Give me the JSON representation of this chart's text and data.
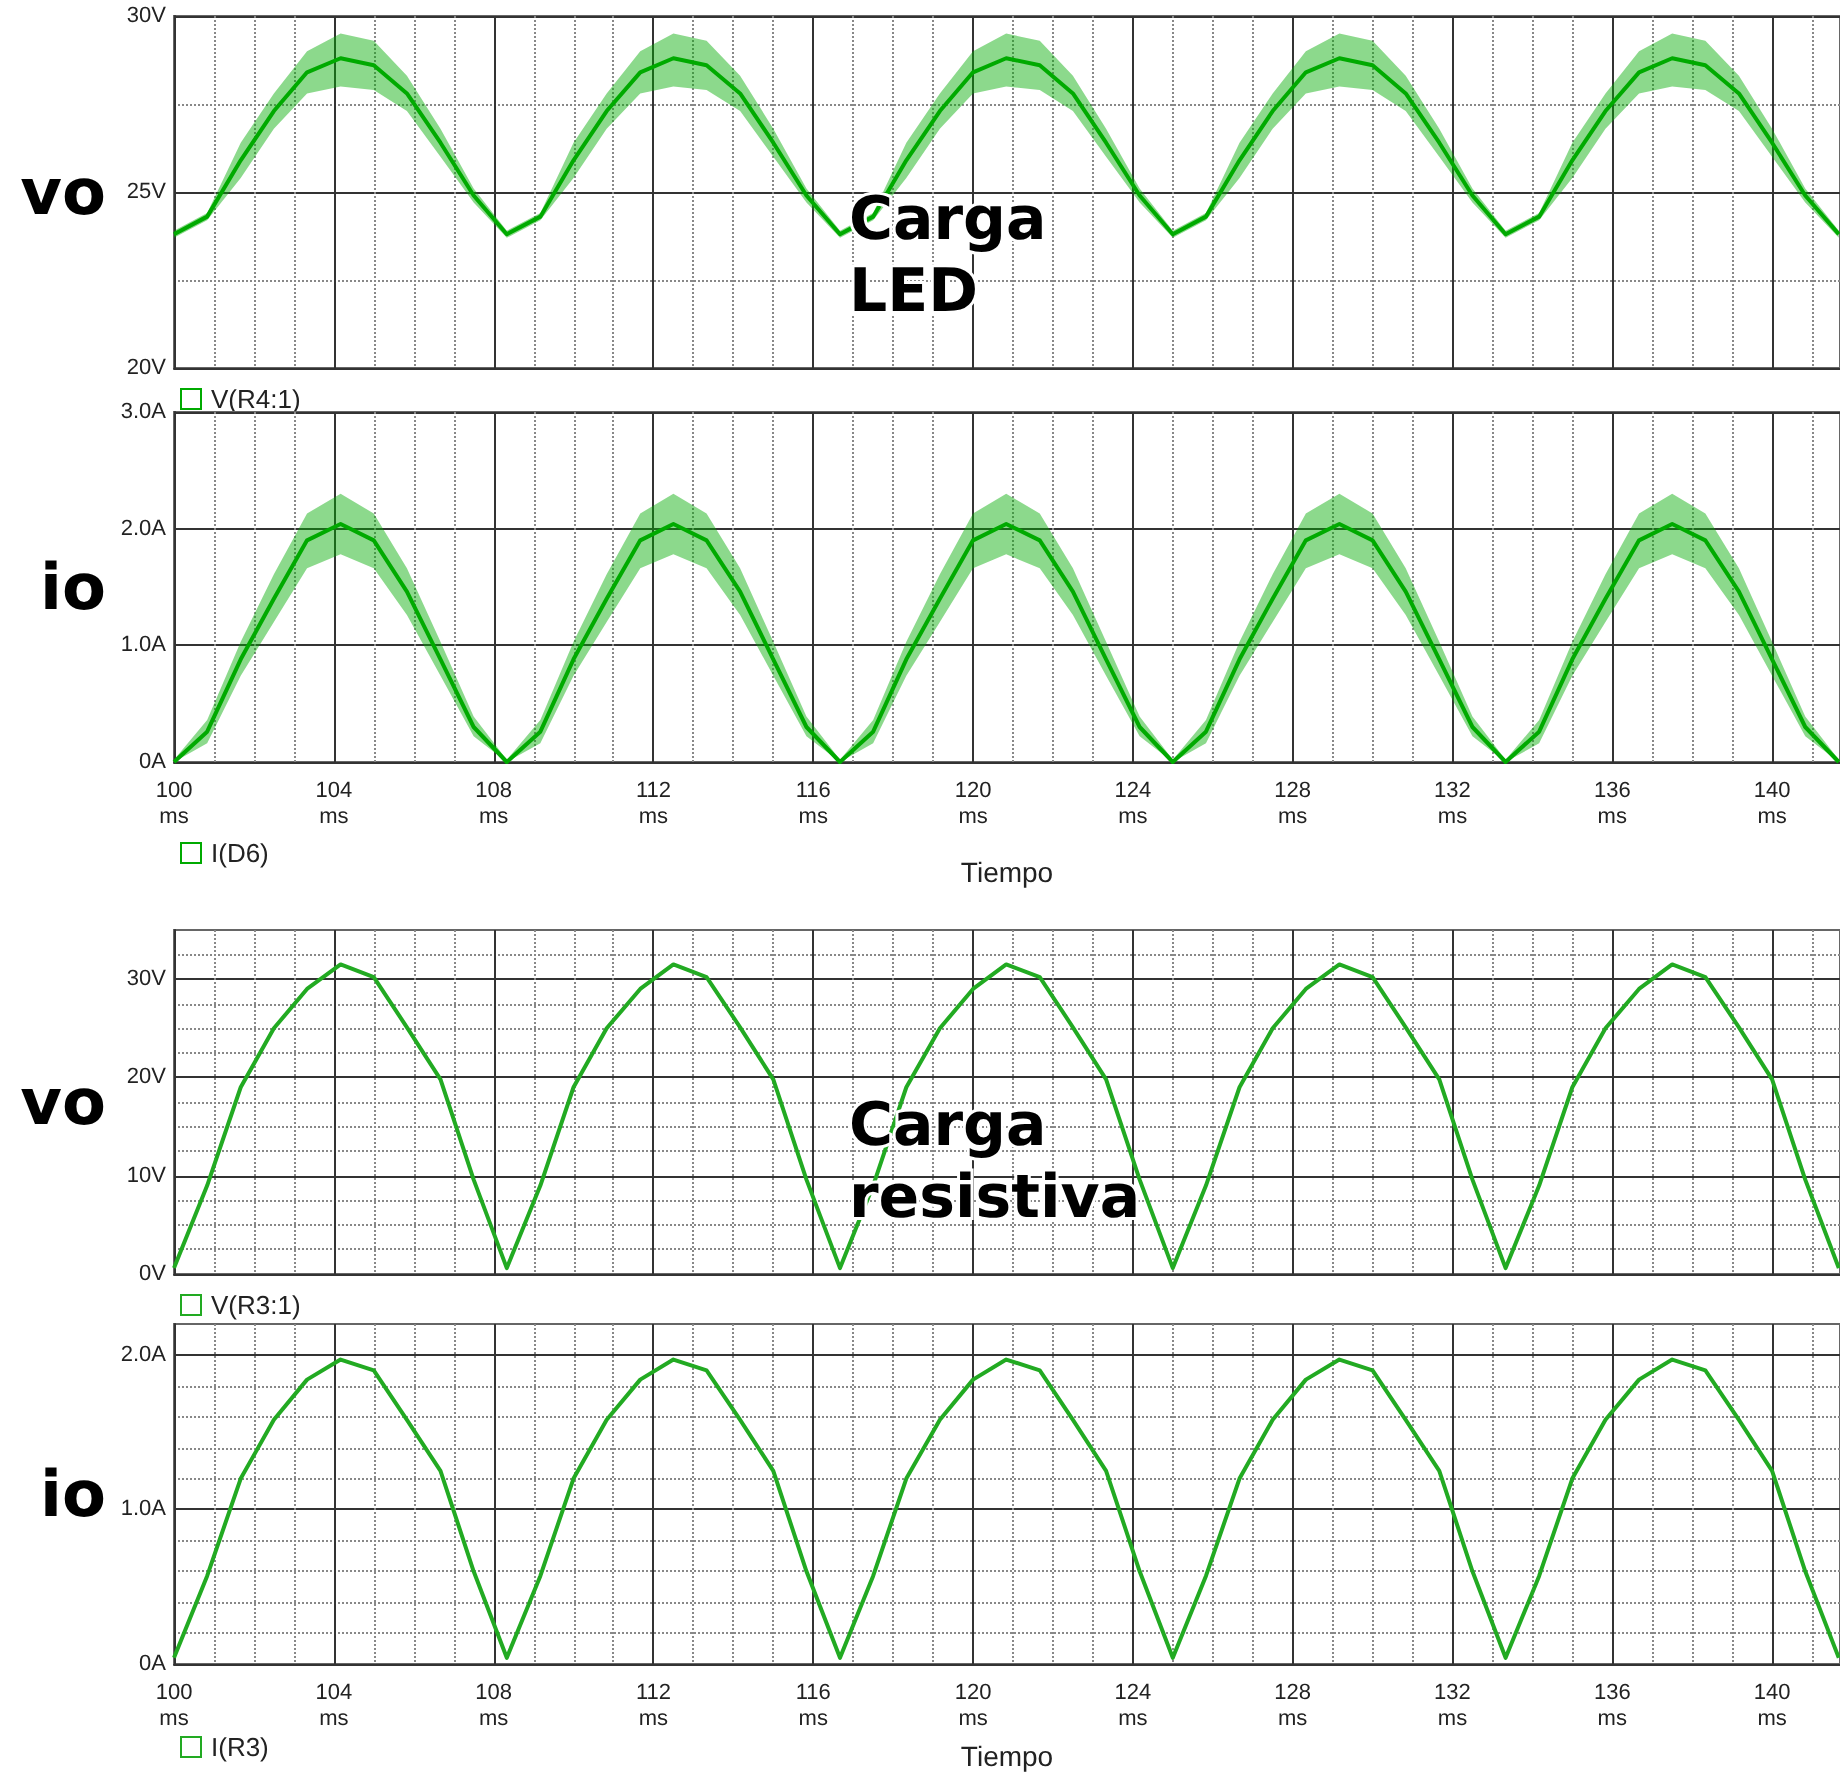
{
  "chart_data": [
    {
      "type": "line",
      "x": [
        100,
        100.83,
        101.67,
        102.5,
        103.33,
        104.17,
        105,
        105.83,
        106.67,
        107.5,
        108.33,
        109.17,
        110,
        110.83,
        111.67,
        112.5,
        113.33,
        114.17,
        115,
        115.83,
        116.67,
        117.5,
        118.33,
        119.17,
        120,
        120.83,
        121.67,
        122.5,
        123.33,
        124.17,
        125,
        125.83,
        126.67,
        127.5,
        128.33,
        129.17,
        130,
        130.83,
        131.67,
        132.5,
        133.33,
        134.17,
        135,
        135.83,
        136.67,
        137.5,
        138.33,
        139.17,
        140,
        140.83,
        141.67
      ],
      "series": [
        {
          "name": "V(R4:1)",
          "color": "#00aa00",
          "values": [
            23.8,
            24.3,
            25.9,
            27.3,
            28.4,
            28.8,
            28.6,
            27.8,
            26.4,
            24.9,
            23.8,
            24.3,
            25.9,
            27.3,
            28.4,
            28.8,
            28.6,
            27.8,
            26.4,
            24.9,
            23.8,
            24.3,
            25.9,
            27.3,
            28.4,
            28.8,
            28.6,
            27.8,
            26.4,
            24.9,
            23.8,
            24.3,
            25.9,
            27.3,
            28.4,
            28.8,
            28.6,
            27.8,
            26.4,
            24.9,
            23.8,
            24.3,
            25.9,
            27.3,
            28.4,
            28.8,
            28.6,
            27.8,
            26.4,
            24.9,
            23.8
          ],
          "lower": [
            23.7,
            24.2,
            25.4,
            26.8,
            27.8,
            28.0,
            27.9,
            27.3,
            26.0,
            24.7,
            23.7,
            24.2,
            25.4,
            26.8,
            27.8,
            28.0,
            27.9,
            27.3,
            26.0,
            24.7,
            23.7,
            24.2,
            25.4,
            26.8,
            27.8,
            28.0,
            27.9,
            27.3,
            26.0,
            24.7,
            23.7,
            24.2,
            25.4,
            26.8,
            27.8,
            28.0,
            27.9,
            27.3,
            26.0,
            24.7,
            23.7,
            24.2,
            25.4,
            26.8,
            27.8,
            28.0,
            27.9,
            27.3,
            26.0,
            24.7,
            23.7
          ],
          "upper": [
            23.9,
            24.4,
            26.4,
            27.8,
            29.0,
            29.5,
            29.3,
            28.3,
            26.8,
            25.1,
            23.9,
            24.4,
            26.4,
            27.8,
            29.0,
            29.5,
            29.3,
            28.3,
            26.8,
            25.1,
            23.9,
            24.4,
            26.4,
            27.8,
            29.0,
            29.5,
            29.3,
            28.3,
            26.8,
            25.1,
            23.9,
            24.4,
            26.4,
            27.8,
            29.0,
            29.5,
            29.3,
            28.3,
            26.8,
            25.1,
            23.9,
            24.4,
            26.4,
            27.8,
            29.0,
            29.5,
            29.3,
            28.3,
            26.8,
            25.1,
            23.9
          ]
        }
      ],
      "xlim": [
        100,
        141.7
      ],
      "xticks": [
        100,
        104,
        108,
        112,
        116,
        120,
        124,
        128,
        132,
        136,
        140
      ],
      "ylim": [
        20,
        30
      ],
      "yticks": [
        {
          "value": 20,
          "label": "20V"
        },
        {
          "value": 25,
          "label": "25V"
        },
        {
          "value": 30,
          "label": "30V"
        }
      ],
      "ylabel": "vo",
      "annotations": [
        "Carga LED"
      ],
      "tick_labels": "y",
      "grid": true,
      "legend": "bottom left",
      "marker": "none"
    },
    {
      "type": "line",
      "x": [
        100,
        100.83,
        101.67,
        102.5,
        103.33,
        104.17,
        105,
        105.83,
        106.67,
        107.5,
        108.33,
        109.17,
        110,
        110.83,
        111.67,
        112.5,
        113.33,
        114.17,
        115,
        115.83,
        116.67,
        117.5,
        118.33,
        119.17,
        120,
        120.83,
        121.67,
        122.5,
        123.33,
        124.17,
        125,
        125.83,
        126.67,
        127.5,
        128.33,
        129.17,
        130,
        130.83,
        131.67,
        132.5,
        133.33,
        134.17,
        135,
        135.83,
        136.67,
        137.5,
        138.33,
        139.17,
        140,
        140.83,
        141.67
      ],
      "series": [
        {
          "name": "I(D6)",
          "color": "#00aa00",
          "values": [
            0,
            0.26,
            0.88,
            1.4,
            1.9,
            2.04,
            1.9,
            1.46,
            0.88,
            0.3,
            0,
            0.26,
            0.88,
            1.4,
            1.9,
            2.04,
            1.9,
            1.46,
            0.88,
            0.3,
            0,
            0.26,
            0.88,
            1.4,
            1.9,
            2.04,
            1.9,
            1.46,
            0.88,
            0.3,
            0,
            0.26,
            0.88,
            1.4,
            1.9,
            2.04,
            1.9,
            1.46,
            0.88,
            0.3,
            0,
            0.26,
            0.88,
            1.4,
            1.9,
            2.04,
            1.9,
            1.46,
            0.88,
            0.3,
            0
          ],
          "lower": [
            0,
            0.16,
            0.74,
            1.2,
            1.66,
            1.78,
            1.66,
            1.26,
            0.74,
            0.22,
            0,
            0.16,
            0.74,
            1.2,
            1.66,
            1.78,
            1.66,
            1.26,
            0.74,
            0.22,
            0,
            0.16,
            0.74,
            1.2,
            1.66,
            1.78,
            1.66,
            1.26,
            0.74,
            0.22,
            0,
            0.16,
            0.74,
            1.2,
            1.66,
            1.78,
            1.66,
            1.26,
            0.74,
            0.22,
            0,
            0.16,
            0.74,
            1.2,
            1.66,
            1.78,
            1.66,
            1.26,
            0.74,
            0.22,
            0
          ],
          "upper": [
            0.02,
            0.36,
            1.03,
            1.61,
            2.13,
            2.3,
            2.13,
            1.66,
            1.03,
            0.39,
            0.02,
            0.36,
            1.03,
            1.61,
            2.13,
            2.3,
            2.13,
            1.66,
            1.03,
            0.39,
            0.02,
            0.36,
            1.03,
            1.61,
            2.13,
            2.3,
            2.13,
            1.66,
            1.03,
            0.39,
            0.02,
            0.36,
            1.03,
            1.61,
            2.13,
            2.3,
            2.13,
            1.66,
            1.03,
            0.39,
            0.02,
            0.36,
            1.03,
            1.61,
            2.13,
            2.3,
            2.13,
            1.66,
            1.03,
            0.39,
            0.02
          ]
        }
      ],
      "xlim": [
        100,
        141.7
      ],
      "xticks": [
        {
          "value": 100,
          "label": "100\nms"
        },
        {
          "value": 104,
          "label": "104\nms"
        },
        {
          "value": 108,
          "label": "108\nms"
        },
        {
          "value": 112,
          "label": "112\nms"
        },
        {
          "value": 116,
          "label": "116\nms"
        },
        {
          "value": 120,
          "label": "120\nms"
        },
        {
          "value": 124,
          "label": "124\nms"
        },
        {
          "value": 128,
          "label": "128\nms"
        },
        {
          "value": 132,
          "label": "132\nms"
        },
        {
          "value": 136,
          "label": "136\nms"
        },
        {
          "value": 140,
          "label": "140\nms"
        }
      ],
      "ylim": [
        0,
        3
      ],
      "yticks": [
        {
          "value": 0,
          "label": "0A"
        },
        {
          "value": 1,
          "label": "1.0A"
        },
        {
          "value": 2,
          "label": "2.0A"
        },
        {
          "value": 3,
          "label": "3.0A"
        }
      ],
      "ylabel": "io",
      "xlabel": "Tiempo",
      "grid": true,
      "legend": "bottom left",
      "marker": "none"
    },
    {
      "type": "line",
      "x": [
        100,
        100.83,
        101.67,
        102.5,
        103.33,
        104.17,
        105,
        105.83,
        106.67,
        107.5,
        108.33,
        109.17,
        110,
        110.83,
        111.67,
        112.5,
        113.33,
        114.17,
        115,
        115.83,
        116.67,
        117.5,
        118.33,
        119.17,
        120,
        120.83,
        121.67,
        122.5,
        123.33,
        124.17,
        125,
        125.83,
        126.67,
        127.5,
        128.33,
        129.17,
        130,
        130.83,
        131.67,
        132.5,
        133.33,
        134.17,
        135,
        135.83,
        136.67,
        137.5,
        138.33,
        139.17,
        140,
        140.83,
        141.67
      ],
      "series": [
        {
          "name": "V(R3:1)",
          "color": "#22aa22",
          "values": [
            0.6,
            9,
            19,
            25,
            29,
            31.5,
            30.2,
            25.1,
            19.8,
            9.6,
            0.6,
            9,
            19,
            25,
            29,
            31.5,
            30.2,
            25.1,
            19.8,
            9.6,
            0.6,
            9,
            19,
            25,
            29,
            31.5,
            30.2,
            25.1,
            19.8,
            9.6,
            0.6,
            9,
            19,
            25,
            29,
            31.5,
            30.2,
            25.1,
            19.8,
            9.6,
            0.6,
            9,
            19,
            25,
            29,
            31.5,
            30.2,
            25.1,
            19.8,
            9.6,
            0.6
          ]
        }
      ],
      "xlim": [
        100,
        141.7
      ],
      "xticks": [
        100,
        104,
        108,
        112,
        116,
        120,
        124,
        128,
        132,
        136,
        140
      ],
      "ylim": [
        0,
        35
      ],
      "yticks": [
        {
          "value": 0,
          "label": "0V"
        },
        {
          "value": 10,
          "label": "10V"
        },
        {
          "value": 20,
          "label": "20V"
        },
        {
          "value": 30,
          "label": "30V"
        }
      ],
      "ylabel": "vo",
      "annotations": [
        "Carga resistiva"
      ],
      "tick_labels": "y",
      "grid": true,
      "legend": "bottom left",
      "marker": "none"
    },
    {
      "type": "line",
      "x": [
        100,
        100.83,
        101.67,
        102.5,
        103.33,
        104.17,
        105,
        105.83,
        106.67,
        107.5,
        108.33,
        109.17,
        110,
        110.83,
        111.67,
        112.5,
        113.33,
        114.17,
        115,
        115.83,
        116.67,
        117.5,
        118.33,
        119.17,
        120,
        120.83,
        121.67,
        122.5,
        123.33,
        124.17,
        125,
        125.83,
        126.67,
        127.5,
        128.33,
        129.17,
        130,
        130.83,
        131.67,
        132.5,
        133.33,
        134.17,
        135,
        135.83,
        136.67,
        137.5,
        138.33,
        139.17,
        140,
        140.83,
        141.67
      ],
      "series": [
        {
          "name": "I(R3)",
          "color": "#22aa22",
          "values": [
            0.04,
            0.57,
            1.2,
            1.58,
            1.84,
            1.97,
            1.9,
            1.58,
            1.25,
            0.6,
            0.04,
            0.57,
            1.2,
            1.58,
            1.84,
            1.97,
            1.9,
            1.58,
            1.25,
            0.6,
            0.04,
            0.57,
            1.2,
            1.58,
            1.84,
            1.97,
            1.9,
            1.58,
            1.25,
            0.6,
            0.04,
            0.57,
            1.2,
            1.58,
            1.84,
            1.97,
            1.9,
            1.58,
            1.25,
            0.6,
            0.04,
            0.57,
            1.2,
            1.58,
            1.84,
            1.97,
            1.9,
            1.58,
            1.25,
            0.6,
            0.04
          ]
        }
      ],
      "xlim": [
        100,
        141.7
      ],
      "xticks": [
        {
          "value": 100,
          "label": "100\nms"
        },
        {
          "value": 104,
          "label": "104\nms"
        },
        {
          "value": 108,
          "label": "108\nms"
        },
        {
          "value": 112,
          "label": "112\nms"
        },
        {
          "value": 116,
          "label": "116\nms"
        },
        {
          "value": 120,
          "label": "120\nms"
        },
        {
          "value": 124,
          "label": "124\nms"
        },
        {
          "value": 128,
          "label": "128\nms"
        },
        {
          "value": 132,
          "label": "132\nms"
        },
        {
          "value": 136,
          "label": "136\nms"
        },
        {
          "value": 140,
          "label": "140\nms"
        }
      ],
      "ylim": [
        0,
        2.2
      ],
      "yticks": [
        {
          "value": 0,
          "label": "0A"
        },
        {
          "value": 1,
          "label": "1.0A"
        },
        {
          "value": 2,
          "label": "2.0A"
        }
      ],
      "ylabel": "io",
      "xlabel": "Tiempo",
      "grid": true,
      "legend": "bottom left",
      "marker": "none"
    }
  ]
}
